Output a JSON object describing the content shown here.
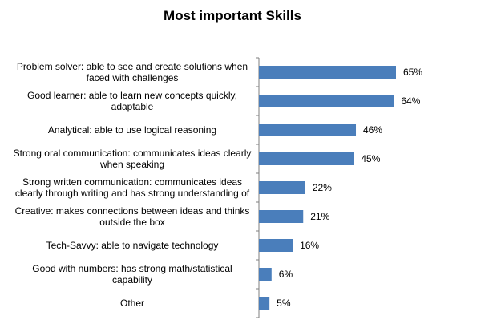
{
  "chart_data": {
    "type": "bar",
    "orientation": "horizontal",
    "title": "Most important Skills",
    "xlabel": "",
    "ylabel": "",
    "xlim": [
      0,
      70
    ],
    "grid": false,
    "legend": "none",
    "bar_color": "#4a7ebb",
    "value_format": "percent",
    "categories": [
      "Problem solver: able to see and create solutions when faced with challenges",
      "Good learner: able to learn new concepts quickly, adaptable",
      "Analytical: able to use logical reasoning",
      "Strong oral communication: communicates ideas clearly when speaking",
      "Strong written communication: communicates ideas clearly through writing and has strong understanding of",
      "Creative: makes connections between ideas and thinks outside the box",
      "Tech-Savvy: able to navigate technology",
      "Good with numbers: has strong math/statistical capability",
      "Other"
    ],
    "values": [
      65,
      64,
      46,
      45,
      22,
      21,
      16,
      6,
      5
    ],
    "value_labels": [
      "65%",
      "64%",
      "46%",
      "45%",
      "22%",
      "21%",
      "16%",
      "6%",
      "5%"
    ]
  }
}
